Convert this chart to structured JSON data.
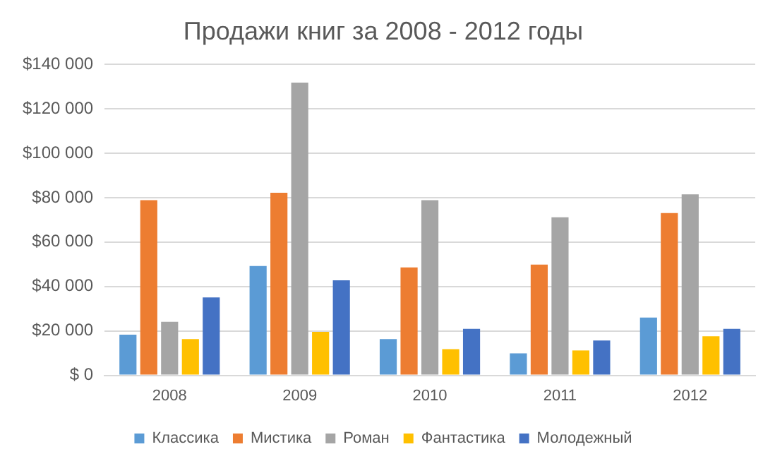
{
  "chart_data": {
    "type": "bar",
    "title": "Продажи книг за 2008 - 2012 годы",
    "categories": [
      "2008",
      "2009",
      "2010",
      "2011",
      "2012"
    ],
    "series": [
      {
        "name": "Классика",
        "color": "#5b9bd5",
        "values": [
          18300,
          49200,
          16300,
          9900,
          26000
        ]
      },
      {
        "name": "Мистика",
        "color": "#ed7d31",
        "values": [
          78900,
          82200,
          48600,
          49900,
          73100
        ]
      },
      {
        "name": "Роман",
        "color": "#a5a5a5",
        "values": [
          24100,
          131800,
          78900,
          71200,
          81500
        ]
      },
      {
        "name": "Фантастика",
        "color": "#ffc000",
        "values": [
          16300,
          19600,
          11800,
          11200,
          17600
        ]
      },
      {
        "name": "Молодежный",
        "color": "#4472c4",
        "values": [
          35100,
          42800,
          20900,
          15700,
          20900
        ]
      }
    ],
    "ylim": [
      0,
      140000
    ],
    "yticks": [
      {
        "value": 0,
        "label": "$ 0"
      },
      {
        "value": 20000,
        "label": "$20 000"
      },
      {
        "value": 40000,
        "label": "$40 000"
      },
      {
        "value": 60000,
        "label": "$60 000"
      },
      {
        "value": 80000,
        "label": "$80 000"
      },
      {
        "value": 100000,
        "label": "$100 000"
      },
      {
        "value": 120000,
        "label": "$120 000"
      },
      {
        "value": 140000,
        "label": "$140 000"
      }
    ],
    "grid": "y",
    "legend": "bottom"
  }
}
